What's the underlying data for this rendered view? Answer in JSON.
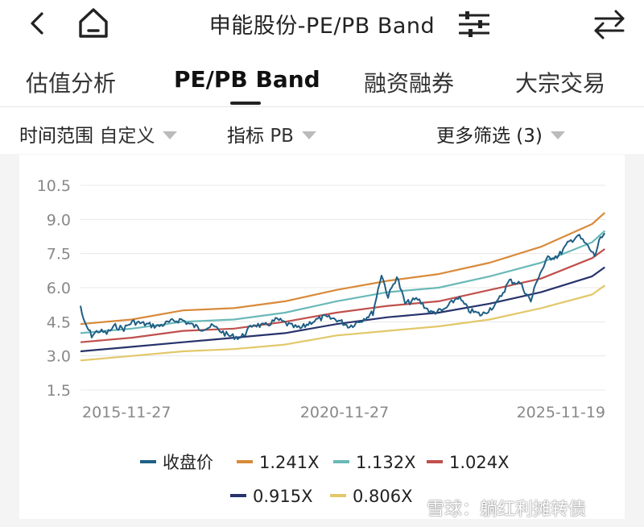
{
  "header": {
    "title": "申能股份-PE/PB Band",
    "icons": [
      "back-icon",
      "home-icon",
      "filter-sliders-icon",
      "swap-arrows-icon"
    ]
  },
  "tabs": [
    {
      "label": "估值分析"
    },
    {
      "label": "PE/PB Band",
      "active": true
    },
    {
      "label": "融资融券"
    },
    {
      "label": "大宗交易"
    }
  ],
  "filters": {
    "time_label": "时间范围",
    "time_value": "自定义",
    "metric_label": "指标",
    "metric_value": "PB",
    "more_label": "更多筛选 (3)"
  },
  "chart_data": {
    "type": "line",
    "y_ticks": [
      "10.5",
      "9.0",
      "7.5",
      "6.0",
      "4.5",
      "3.0",
      "1.5"
    ],
    "ylim": [
      1.5,
      10.5
    ],
    "x_ticks": [
      "2015-11-27",
      "2020-11-27",
      "2025-11-19"
    ],
    "xlim": [
      "2015-11-27",
      "2026-03-01"
    ],
    "grid": true,
    "legend_position": "bottom",
    "series": [
      {
        "name": "收盘价",
        "color": "#1f5f85",
        "points": [
          [
            "2015-11-27",
            5.2
          ],
          [
            "2015-12-20",
            4.5
          ],
          [
            "2016-02-15",
            3.9
          ],
          [
            "2016-04-01",
            4.1
          ],
          [
            "2016-06-01",
            4.0
          ],
          [
            "2016-08-01",
            4.3
          ],
          [
            "2016-10-01",
            4.2
          ],
          [
            "2016-12-01",
            4.5
          ],
          [
            "2017-03-01",
            4.4
          ],
          [
            "2017-06-01",
            4.3
          ],
          [
            "2017-09-01",
            4.5
          ],
          [
            "2017-11-15",
            4.6
          ],
          [
            "2018-01-15",
            4.4
          ],
          [
            "2018-04-01",
            4.2
          ],
          [
            "2018-07-01",
            4.3
          ],
          [
            "2018-10-15",
            3.9
          ],
          [
            "2019-01-15",
            3.8
          ],
          [
            "2019-04-15",
            4.4
          ],
          [
            "2019-07-01",
            4.3
          ],
          [
            "2019-10-01",
            4.6
          ],
          [
            "2020-01-15",
            4.3
          ],
          [
            "2020-03-15",
            4.2
          ],
          [
            "2020-06-01",
            4.5
          ],
          [
            "2020-09-01",
            4.7
          ],
          [
            "2020-12-01",
            4.6
          ],
          [
            "2021-03-01",
            4.3
          ],
          [
            "2021-06-01",
            4.6
          ],
          [
            "2021-08-15",
            4.9
          ],
          [
            "2021-10-15",
            6.6
          ],
          [
            "2021-12-01",
            5.6
          ],
          [
            "2022-02-01",
            6.5
          ],
          [
            "2022-04-01",
            5.3
          ],
          [
            "2022-07-01",
            5.5
          ],
          [
            "2022-10-01",
            4.9
          ],
          [
            "2023-01-01",
            5.0
          ],
          [
            "2023-04-15",
            5.6
          ],
          [
            "2023-07-01",
            5.0
          ],
          [
            "2023-10-01",
            4.8
          ],
          [
            "2024-01-15",
            5.3
          ],
          [
            "2024-04-15",
            6.3
          ],
          [
            "2024-07-01",
            6.2
          ],
          [
            "2024-09-15",
            5.4
          ],
          [
            "2024-11-01",
            6.4
          ],
          [
            "2025-01-15",
            7.3
          ],
          [
            "2025-04-01",
            7.4
          ],
          [
            "2025-06-15",
            8.0
          ],
          [
            "2025-08-15",
            8.3
          ],
          [
            "2025-10-15",
            7.9
          ],
          [
            "2025-12-15",
            7.4
          ],
          [
            "2026-01-15",
            8.0
          ],
          [
            "2026-02-25",
            8.4
          ]
        ]
      },
      {
        "name": "1.241X",
        "color": "#d98a3a",
        "points": [
          [
            "2015-11-27",
            4.4
          ],
          [
            "2016-11-27",
            4.6
          ],
          [
            "2017-11-27",
            5.0
          ],
          [
            "2018-11-27",
            5.1
          ],
          [
            "2019-11-27",
            5.4
          ],
          [
            "2020-11-27",
            5.9
          ],
          [
            "2021-11-27",
            6.3
          ],
          [
            "2022-11-27",
            6.6
          ],
          [
            "2023-11-27",
            7.1
          ],
          [
            "2024-11-27",
            7.8
          ],
          [
            "2025-11-27",
            8.8
          ],
          [
            "2026-02-25",
            9.3
          ]
        ]
      },
      {
        "name": "1.132X",
        "color": "#6ab9b8",
        "points": [
          [
            "2015-11-27",
            4.0
          ],
          [
            "2016-11-27",
            4.2
          ],
          [
            "2017-11-27",
            4.5
          ],
          [
            "2018-11-27",
            4.6
          ],
          [
            "2019-11-27",
            4.9
          ],
          [
            "2020-11-27",
            5.4
          ],
          [
            "2021-11-27",
            5.8
          ],
          [
            "2022-11-27",
            6.0
          ],
          [
            "2023-11-27",
            6.5
          ],
          [
            "2024-11-27",
            7.1
          ],
          [
            "2025-11-27",
            8.0
          ],
          [
            "2026-02-25",
            8.5
          ]
        ]
      },
      {
        "name": "1.024X",
        "color": "#c0504d",
        "points": [
          [
            "2015-11-27",
            3.6
          ],
          [
            "2016-11-27",
            3.8
          ],
          [
            "2017-11-27",
            4.1
          ],
          [
            "2018-11-27",
            4.2
          ],
          [
            "2019-11-27",
            4.5
          ],
          [
            "2020-11-27",
            4.9
          ],
          [
            "2021-11-27",
            5.2
          ],
          [
            "2022-11-27",
            5.4
          ],
          [
            "2023-11-27",
            5.9
          ],
          [
            "2024-11-27",
            6.4
          ],
          [
            "2025-11-27",
            7.3
          ],
          [
            "2026-02-25",
            7.7
          ]
        ]
      },
      {
        "name": "0.915X",
        "color": "#27336b",
        "points": [
          [
            "2015-11-27",
            3.2
          ],
          [
            "2016-11-27",
            3.4
          ],
          [
            "2017-11-27",
            3.6
          ],
          [
            "2018-11-27",
            3.8
          ],
          [
            "2019-11-27",
            4.0
          ],
          [
            "2020-11-27",
            4.4
          ],
          [
            "2021-11-27",
            4.7
          ],
          [
            "2022-11-27",
            4.9
          ],
          [
            "2023-11-27",
            5.3
          ],
          [
            "2024-11-27",
            5.8
          ],
          [
            "2025-11-27",
            6.5
          ],
          [
            "2026-02-25",
            6.9
          ]
        ]
      },
      {
        "name": "0.806X",
        "color": "#e2c86a",
        "points": [
          [
            "2015-11-27",
            2.8
          ],
          [
            "2016-11-27",
            3.0
          ],
          [
            "2017-11-27",
            3.2
          ],
          [
            "2018-11-27",
            3.3
          ],
          [
            "2019-11-27",
            3.5
          ],
          [
            "2020-11-27",
            3.9
          ],
          [
            "2021-11-27",
            4.1
          ],
          [
            "2022-11-27",
            4.3
          ],
          [
            "2023-11-27",
            4.6
          ],
          [
            "2024-11-27",
            5.1
          ],
          [
            "2025-11-27",
            5.7
          ],
          [
            "2026-02-25",
            6.1
          ]
        ]
      }
    ]
  },
  "watermark": "雪球：躺红利摊转债"
}
